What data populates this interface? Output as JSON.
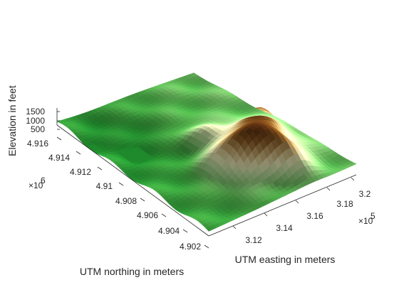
{
  "chart_data": {
    "type": "surface",
    "title": "",
    "xlabel": "UTM easting in meters",
    "ylabel": "UTM northing in meters",
    "zlabel": "Elevation in feet",
    "x_ticks": [
      "3.12",
      "3.14",
      "3.16",
      "3.18",
      "3.2"
    ],
    "x_tick_values": [
      312000,
      314000,
      316000,
      318000,
      320000
    ],
    "x_exponent_base": "×10",
    "x_exponent_power": "5",
    "y_ticks": [
      "4.902",
      "4.904",
      "4.906",
      "4.908",
      "4.91",
      "4.912",
      "4.914",
      "4.916"
    ],
    "y_tick_values": [
      4902000,
      4904000,
      4906000,
      4908000,
      4910000,
      4912000,
      4914000,
      4916000
    ],
    "y_exponent_base": "×10",
    "y_exponent_power": "6",
    "z_ticks": [
      "500",
      "1000",
      "1500"
    ],
    "z_tick_values": [
      500,
      1000,
      1500
    ],
    "xlim": [
      311000,
      321000
    ],
    "ylim": [
      4901500,
      4916500
    ],
    "zlim": [
      0,
      1700
    ],
    "colormap": [
      "#1f8a2c",
      "#4fb04a",
      "#a9d98f",
      "#f0eebb",
      "#c8aa6e",
      "#8a5a22",
      "#5a2e10"
    ],
    "approx_elevation_range_ft": [
      400,
      1650
    ],
    "grid": false
  }
}
